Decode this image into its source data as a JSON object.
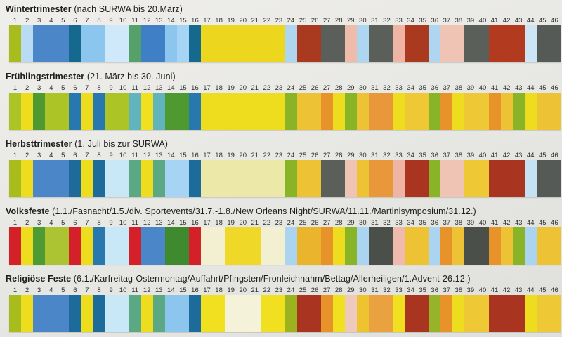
{
  "page": {
    "background": "#e8e8e4",
    "text_color": "#1d1d1d"
  },
  "chart_data": {
    "type": "heatmap",
    "description": "Five horizontal week-by-week color strip timelines, 46 numbered cells each",
    "categories": [
      "1",
      "2",
      "3",
      "4",
      "5",
      "6",
      "7",
      "8",
      "9",
      "10",
      "11",
      "12",
      "13",
      "14",
      "15",
      "16",
      "17",
      "18",
      "19",
      "20",
      "21",
      "22",
      "23",
      "24",
      "25",
      "26",
      "27",
      "28",
      "29",
      "30",
      "31",
      "32",
      "33",
      "34",
      "35",
      "36",
      "37",
      "38",
      "39",
      "40",
      "41",
      "42",
      "43",
      "44",
      "45",
      "46"
    ],
    "rows": [
      {
        "title_bold": "Wintertrimester",
        "title_rest": " (nach SURWA bis 20.März)",
        "colors": [
          "#a9bc1e",
          "#b9dcf4",
          "#4a86c8",
          "#4a86c8",
          "#4a86c8",
          "#16698e",
          "#8cc6ee",
          "#8cc6ee",
          "#cfe9fb",
          "#cfe9fb",
          "#56a169",
          "#3f7fc6",
          "#3f7fc6",
          "#8cc6ee",
          "#a5d4f4",
          "#16698e",
          "#ecd71e",
          "#ecd71e",
          "#ecd71e",
          "#ecd71e",
          "#ecd71e",
          "#ecd71e",
          "#ecd71e",
          "#aed6f0",
          "#a93a20",
          "#a93a20",
          "#5a5f5a",
          "#5a5f5a",
          "#efbcab",
          "#aed6f0",
          "#5a5f5a",
          "#5a5f5a",
          "#efb4a4",
          "#a93a20",
          "#a93a20",
          "#aed6f0",
          "#f0c4b4",
          "#f0c4b4",
          "#5a5f5a",
          "#5a5f5a",
          "#b23a1e",
          "#b23a1e",
          "#b23a1e",
          "#cde6f6",
          "#555a56",
          "#555a56"
        ]
      },
      {
        "title_bold": "Frühlingstrimester",
        "title_rest": " (21. März bis 30. Juni)",
        "colors": [
          "#adc426",
          "#eedc1e",
          "#4e9a30",
          "#adc426",
          "#adc426",
          "#2878b0",
          "#eedc1e",
          "#2878b0",
          "#adc426",
          "#adc426",
          "#62b4bc",
          "#f0e020",
          "#62b4bc",
          "#4e9a30",
          "#4e9a30",
          "#2878b0",
          "#eedc1e",
          "#eedc1e",
          "#eedc1e",
          "#eedc1e",
          "#eedc1e",
          "#eedc1e",
          "#eedc1e",
          "#8ab428",
          "#eec235",
          "#eec235",
          "#e8922a",
          "#eedc1e",
          "#8ab428",
          "#eec235",
          "#e8983a",
          "#e8983a",
          "#eedc1e",
          "#eec935",
          "#eec935",
          "#8ab428",
          "#e8922a",
          "#eedc1e",
          "#eec935",
          "#eec935",
          "#e8922a",
          "#eec235",
          "#8ab428",
          "#eedc1e",
          "#eec235",
          "#eec235"
        ]
      },
      {
        "title_bold": "Herbsttrimester",
        "title_rest": " (1. Juli bis zur SURWA)",
        "colors": [
          "#a9bc1e",
          "#eedc1e",
          "#4a86c8",
          "#4a86c8",
          "#4a86c8",
          "#1d6b9a",
          "#eedc1e",
          "#1d6b9a",
          "#c8e8f8",
          "#c8e8f8",
          "#5aa884",
          "#eedc1e",
          "#5aa884",
          "#a5d4f4",
          "#a5d4f4",
          "#1d6b9a",
          "#ece9a8",
          "#ece9a8",
          "#ece9a8",
          "#ece9a8",
          "#ece9a8",
          "#ece9a8",
          "#ece9a8",
          "#8ab428",
          "#eec235",
          "#eec235",
          "#5a5f5a",
          "#5a5f5a",
          "#f0c4b4",
          "#eec235",
          "#e8983a",
          "#e8983a",
          "#efb4a4",
          "#a93420",
          "#a93420",
          "#8ab428",
          "#f0c4b4",
          "#f0c4b4",
          "#eec935",
          "#eec935",
          "#a93420",
          "#a93420",
          "#a93420",
          "#c4e2f4",
          "#555a56",
          "#555a56"
        ]
      },
      {
        "title_bold": "Volksfeste",
        "title_rest": " (1.1./Fasnacht/1.5./div. Sportevents/31.7.-1.8./New Orleans Night/SURWA/11.11./Martinisymposium/31.12.)",
        "colors": [
          "#d42028",
          "#eedc1e",
          "#4f9b33",
          "#adc432",
          "#adc432",
          "#d42028",
          "#eedc1e",
          "#2878b0",
          "#c8e8f8",
          "#c8e8f8",
          "#d42028",
          "#4a86c8",
          "#4a86c8",
          "#3f8a2e",
          "#3f8a2e",
          "#d42028",
          "#f2f0d0",
          "#f2f0d0",
          "#f0d828",
          "#f0d828",
          "#f0d828",
          "#f2f0d0",
          "#f2f0d0",
          "#aad4f0",
          "#eab52d",
          "#eab52d",
          "#e8922a",
          "#eedc1e",
          "#8ab428",
          "#aad4f0",
          "#4a4f4a",
          "#4a4f4a",
          "#efb9ae",
          "#eec235",
          "#eec235",
          "#aad4f0",
          "#e8922a",
          "#eec235",
          "#4a4f4a",
          "#4a4f4a",
          "#e8922a",
          "#eec235",
          "#8ab428",
          "#aad4f0",
          "#eec235",
          "#eec235"
        ]
      },
      {
        "title_bold": "Religiöse Feste",
        "title_rest": " (6.1./Karfreitag-Ostermontag/Auffahrt/Pfingsten/Fronleichnahm/Bettag/Allerheiligen/1.Advent-26.12.)",
        "colors": [
          "#a9bc1e",
          "#eedc1e",
          "#4a86c8",
          "#4a86c8",
          "#4a86c8",
          "#1d6b9a",
          "#eedc1e",
          "#1d6b9a",
          "#c8e8f8",
          "#c8e8f8",
          "#5aa884",
          "#eedc1e",
          "#5aa884",
          "#8cc6ee",
          "#8cc6ee",
          "#1d6b9a",
          "#f0e020",
          "#f0e020",
          "#f4f2d8",
          "#f4f2d8",
          "#f4f2d8",
          "#f0e020",
          "#f0e020",
          "#9ab31e",
          "#a93420",
          "#a93420",
          "#e8922a",
          "#f0e020",
          "#efc9bd",
          "#edc32f",
          "#e9a23f",
          "#e9a23f",
          "#f0e020",
          "#a93420",
          "#a93420",
          "#96b32a",
          "#e8922a",
          "#eedc1e",
          "#eec935",
          "#eec935",
          "#a93420",
          "#a93420",
          "#a93420",
          "#eedc1e",
          "#eec935",
          "#eec935"
        ]
      }
    ]
  }
}
